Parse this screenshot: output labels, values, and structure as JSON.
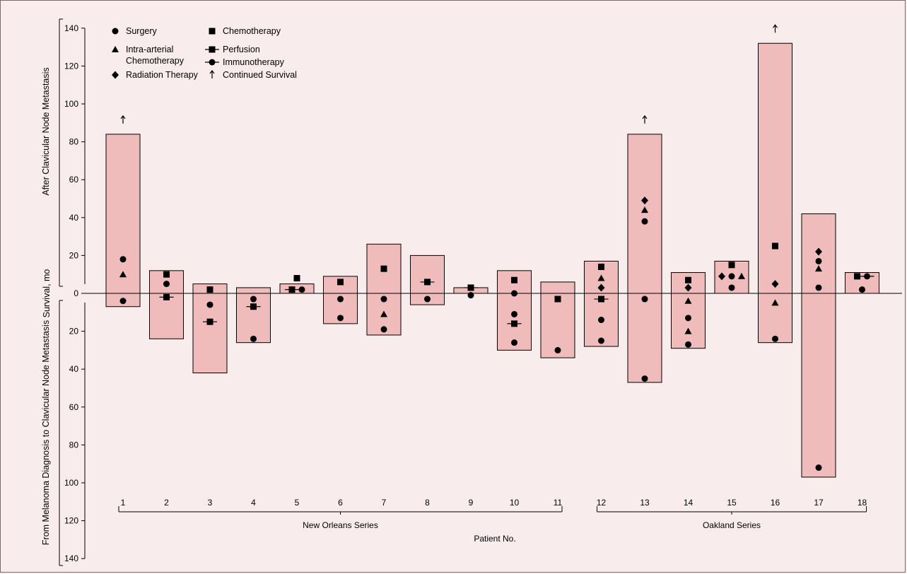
{
  "chart_data": {
    "type": "bar",
    "y_unit": "mo",
    "ylabel": "Survival, mo",
    "ylabel_upper": "After Clavicular Node Metastasis",
    "ylabel_lower": "From Melanoma Diagnosis to Clavicular Node Metastasis",
    "xlabel": "Patient No.",
    "y_upper_range": [
      0,
      140
    ],
    "y_lower_range": [
      0,
      140
    ],
    "y_ticks": [
      0,
      20,
      40,
      60,
      80,
      100,
      120,
      140
    ],
    "categories": [
      "1",
      "2",
      "3",
      "4",
      "5",
      "6",
      "7",
      "8",
      "9",
      "10",
      "11",
      "12",
      "13",
      "14",
      "15",
      "16",
      "17",
      "18"
    ],
    "series_groups": [
      {
        "label": "New Orleans Series",
        "patients": [
          "1",
          "2",
          "3",
          "4",
          "5",
          "6",
          "7",
          "8",
          "9",
          "10",
          "11"
        ]
      },
      {
        "label": "Oakland Series",
        "patients": [
          "12",
          "13",
          "14",
          "15",
          "16",
          "17",
          "18"
        ]
      }
    ],
    "legend": {
      "placement": "top-left",
      "items": [
        {
          "key": "surgery",
          "label": "Surgery"
        },
        {
          "key": "chemotherapy",
          "label": "Chemotherapy"
        },
        {
          "key": "intra_arterial",
          "label": "Intra-arterial\nChemotherapy"
        },
        {
          "key": "perfusion",
          "label": "Perfusion"
        },
        {
          "key": "radiation",
          "label": "Radiation Therapy"
        },
        {
          "key": "immunotherapy",
          "label": "Immunotherapy"
        },
        {
          "key": "continued",
          "label": "Continued Survival"
        }
      ]
    },
    "survival_after": [
      84,
      12,
      5,
      3,
      5,
      9,
      26,
      20,
      3,
      12,
      6,
      17,
      84,
      11,
      17,
      132,
      42,
      11
    ],
    "survival_before": [
      7,
      24,
      42,
      26,
      0,
      16,
      22,
      6,
      0,
      30,
      34,
      28,
      47,
      29,
      0,
      26,
      97,
      0
    ],
    "continued_survival": [
      "1",
      "13",
      "16"
    ],
    "treatments": [
      {
        "patient": "1",
        "type": "surgery",
        "value": 18
      },
      {
        "patient": "1",
        "type": "intra_arterial",
        "value": 10
      },
      {
        "patient": "1",
        "type": "surgery",
        "value": -4
      },
      {
        "patient": "2",
        "type": "chemotherapy",
        "value": 10
      },
      {
        "patient": "2",
        "type": "surgery",
        "value": 5
      },
      {
        "patient": "2",
        "type": "perfusion",
        "value": -2
      },
      {
        "patient": "3",
        "type": "chemotherapy",
        "value": 2
      },
      {
        "patient": "3",
        "type": "surgery",
        "value": -6
      },
      {
        "patient": "3",
        "type": "perfusion",
        "value": -15
      },
      {
        "patient": "4",
        "type": "surgery",
        "value": -3
      },
      {
        "patient": "4",
        "type": "perfusion",
        "value": -7
      },
      {
        "patient": "4",
        "type": "surgery",
        "value": -24
      },
      {
        "patient": "5",
        "type": "chemotherapy",
        "value": 8
      },
      {
        "patient": "5",
        "type": "perfusion",
        "value": 2
      },
      {
        "patient": "5",
        "type": "surgery",
        "value": 2
      },
      {
        "patient": "6",
        "type": "chemotherapy",
        "value": 6
      },
      {
        "patient": "6",
        "type": "surgery",
        "value": -3
      },
      {
        "patient": "6",
        "type": "surgery",
        "value": -13
      },
      {
        "patient": "7",
        "type": "chemotherapy",
        "value": 13
      },
      {
        "patient": "7",
        "type": "surgery",
        "value": -3
      },
      {
        "patient": "7",
        "type": "intra_arterial",
        "value": -11
      },
      {
        "patient": "7",
        "type": "surgery",
        "value": -19
      },
      {
        "patient": "8",
        "type": "perfusion",
        "value": 6
      },
      {
        "patient": "8",
        "type": "surgery",
        "value": -3
      },
      {
        "patient": "9",
        "type": "perfusion",
        "value": 3
      },
      {
        "patient": "9",
        "type": "surgery",
        "value": -1
      },
      {
        "patient": "10",
        "type": "chemotherapy",
        "value": 7
      },
      {
        "patient": "10",
        "type": "surgery",
        "value": 0
      },
      {
        "patient": "10",
        "type": "surgery",
        "value": -11
      },
      {
        "patient": "10",
        "type": "perfusion",
        "value": -16
      },
      {
        "patient": "10",
        "type": "surgery",
        "value": -26
      },
      {
        "patient": "11",
        "type": "chemotherapy",
        "value": -3
      },
      {
        "patient": "11",
        "type": "surgery",
        "value": -30
      },
      {
        "patient": "12",
        "type": "chemotherapy",
        "value": 14
      },
      {
        "patient": "12",
        "type": "intra_arterial",
        "value": 8
      },
      {
        "patient": "12",
        "type": "radiation",
        "value": 3
      },
      {
        "patient": "12",
        "type": "perfusion",
        "value": -3
      },
      {
        "patient": "12",
        "type": "surgery",
        "value": -14
      },
      {
        "patient": "12",
        "type": "surgery",
        "value": -25
      },
      {
        "patient": "13",
        "type": "radiation",
        "value": 49
      },
      {
        "patient": "13",
        "type": "intra_arterial",
        "value": 44
      },
      {
        "patient": "13",
        "type": "surgery",
        "value": 38
      },
      {
        "patient": "13",
        "type": "surgery",
        "value": -3
      },
      {
        "patient": "13",
        "type": "surgery",
        "value": -45
      },
      {
        "patient": "14",
        "type": "chemotherapy",
        "value": 7
      },
      {
        "patient": "14",
        "type": "radiation",
        "value": 3
      },
      {
        "patient": "14",
        "type": "intra_arterial",
        "value": -4
      },
      {
        "patient": "14",
        "type": "surgery",
        "value": -13
      },
      {
        "patient": "14",
        "type": "intra_arterial",
        "value": -20
      },
      {
        "patient": "14",
        "type": "surgery",
        "value": -27
      },
      {
        "patient": "15",
        "type": "chemotherapy",
        "value": 15
      },
      {
        "patient": "15",
        "type": "radiation",
        "value": 9
      },
      {
        "patient": "15",
        "type": "surgery",
        "value": 9
      },
      {
        "patient": "15",
        "type": "intra_arterial",
        "value": 9
      },
      {
        "patient": "15",
        "type": "surgery",
        "value": 3
      },
      {
        "patient": "16",
        "type": "chemotherapy",
        "value": 25
      },
      {
        "patient": "16",
        "type": "radiation",
        "value": 5
      },
      {
        "patient": "16",
        "type": "intra_arterial",
        "value": -5
      },
      {
        "patient": "16",
        "type": "surgery",
        "value": -24
      },
      {
        "patient": "17",
        "type": "radiation",
        "value": 22
      },
      {
        "patient": "17",
        "type": "surgery",
        "value": 17
      },
      {
        "patient": "17",
        "type": "intra_arterial",
        "value": 13
      },
      {
        "patient": "17",
        "type": "surgery",
        "value": 3
      },
      {
        "patient": "17",
        "type": "surgery",
        "value": -92
      },
      {
        "patient": "18",
        "type": "chemotherapy",
        "value": 9
      },
      {
        "patient": "18",
        "type": "surgery",
        "value": 2
      },
      {
        "patient": "18",
        "type": "immunotherapy",
        "value": 9
      }
    ],
    "colors": {
      "bar_fill": "#efbbbb",
      "bar_stroke": "#000000",
      "background": "#f8ecec",
      "marker": "#000000"
    }
  }
}
